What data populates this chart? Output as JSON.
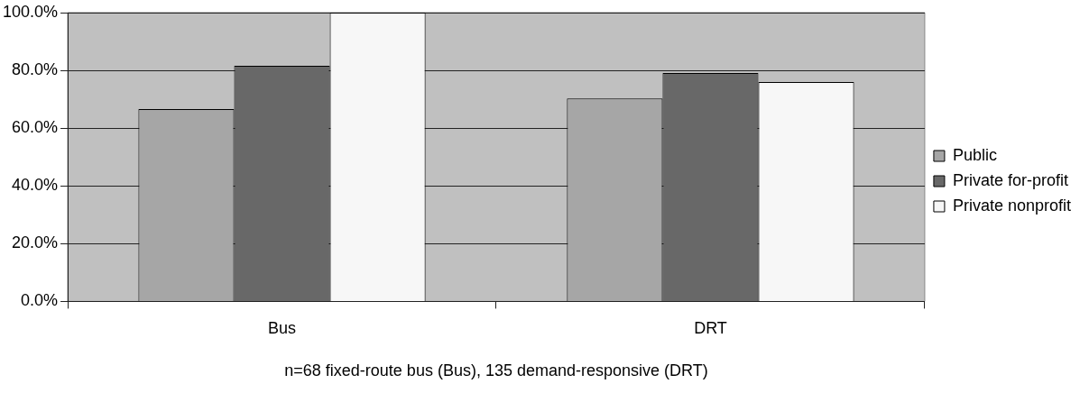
{
  "chart_data": {
    "type": "bar",
    "categories": [
      "Bus",
      "DRT"
    ],
    "series": [
      {
        "name": "Public",
        "color": "#a6a6a6",
        "values": [
          66.6,
          70.3
        ]
      },
      {
        "name": "Private for-profit",
        "color": "#686868",
        "values": [
          81.6,
          79.1
        ]
      },
      {
        "name": "Private nonprofit",
        "color": "#f7f7f7",
        "values": [
          100,
          76.0
        ]
      }
    ],
    "ylim": [
      0,
      100
    ],
    "yticks": [
      {
        "value": 0,
        "label": "0.0%"
      },
      {
        "value": 20,
        "label": "20.0%"
      },
      {
        "value": 40,
        "label": "40.0%"
      },
      {
        "value": 60,
        "label": "60.0%"
      },
      {
        "value": 80,
        "label": "80.0%"
      },
      {
        "value": 100,
        "label": "100.0%"
      }
    ],
    "grid": "y",
    "legend": "right",
    "annotations": [
      "n=68 fixed-route bus (Bus), 135 demand-responsive (DRT)"
    ]
  }
}
